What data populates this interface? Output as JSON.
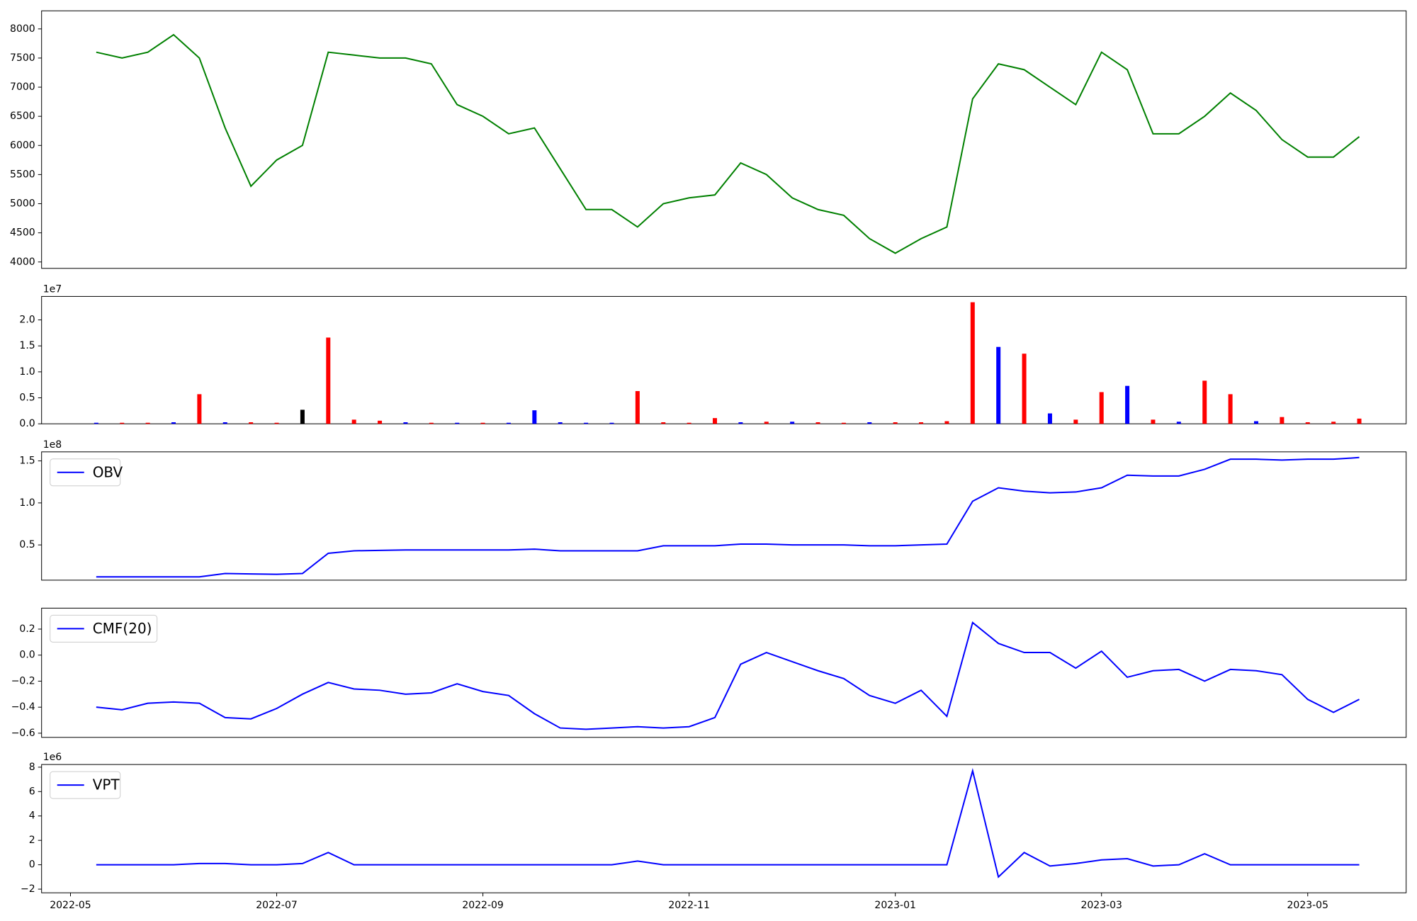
{
  "chart_data": [
    {
      "type": "line",
      "color": "green",
      "values": [
        null,
        null,
        7600,
        7500,
        7600,
        7900,
        7500,
        6300,
        5300,
        5750,
        6000,
        7600,
        7550,
        7500,
        7500,
        7400,
        6700,
        6500,
        6200,
        6300,
        5600,
        4900,
        4900,
        4600,
        5000,
        5100,
        5150,
        5700,
        5500,
        5100,
        4900,
        4800,
        4400,
        4150,
        4400,
        4600,
        6800,
        7400,
        7300,
        7000,
        6700,
        7600,
        7300,
        6200,
        6200,
        6500,
        6900,
        6600,
        6100,
        5800,
        5800,
        6150,
        null
      ],
      "ylim": [
        3890,
        8310
      ],
      "yticks": [
        4000,
        4500,
        5000,
        5500,
        6000,
        6500,
        7000,
        7500,
        8000
      ]
    },
    {
      "type": "bar",
      "offset_label": "1e7",
      "values": [
        null,
        null,
        200000,
        200000,
        200000,
        300000,
        5700000,
        300000,
        300000,
        200000,
        2700000,
        16600000,
        800000,
        600000,
        300000,
        200000,
        200000,
        200000,
        200000,
        2600000,
        300000,
        200000,
        200000,
        6300000,
        300000,
        200000,
        1100000,
        300000,
        400000,
        400000,
        300000,
        200000,
        300000,
        300000,
        300000,
        500000,
        23400000,
        14800000,
        13500000,
        2000000,
        800000,
        6100000,
        7300000,
        800000,
        400000,
        8300000,
        5700000,
        500000,
        1300000,
        300000,
        400000,
        1000000,
        null
      ],
      "colors": [
        null,
        null,
        "blue",
        "red",
        "red",
        "blue",
        "red",
        "blue",
        "red",
        "red",
        "black",
        "red",
        "red",
        "red",
        "blue",
        "red",
        "blue",
        "red",
        "blue",
        "blue",
        "blue",
        "blue",
        "blue",
        "red",
        "red",
        "red",
        "red",
        "blue",
        "red",
        "blue",
        "red",
        "red",
        "blue",
        "red",
        "red",
        "red",
        "red",
        "blue",
        "red",
        "blue",
        "red",
        "red",
        "blue",
        "red",
        "blue",
        "red",
        "red",
        "blue",
        "red",
        "red",
        "red",
        "red",
        null
      ],
      "ylim": [
        0,
        24520000
      ],
      "yticks": [
        {
          "value": 0,
          "label": "0.0"
        },
        {
          "value": 5000000,
          "label": "0.5"
        },
        {
          "value": 10000000,
          "label": "1.0"
        },
        {
          "value": 15000000,
          "label": "1.5"
        },
        {
          "value": 20000000,
          "label": "2.0"
        }
      ]
    },
    {
      "type": "line",
      "offset_label": "1e8",
      "legend": "upper left",
      "series": [
        {
          "name": "OBV",
          "color": "blue",
          "values": [
            null,
            null,
            12000000,
            12000000,
            12000000,
            12000000,
            12000000,
            16000000,
            15500000,
            15000000,
            16000000,
            40000000,
            43000000,
            43500000,
            44000000,
            44000000,
            44000000,
            44000000,
            44000000,
            45000000,
            43000000,
            43000000,
            43000000,
            43000000,
            49000000,
            49000000,
            49000000,
            51000000,
            51000000,
            50000000,
            50000000,
            50000000,
            49000000,
            49000000,
            50000000,
            51000000,
            102000000,
            118000000,
            114000000,
            112000000,
            113000000,
            118000000,
            133000000,
            132000000,
            132000000,
            140000000,
            152000000,
            152000000,
            151000000,
            152000000,
            152000000,
            154000000,
            null
          ]
        }
      ],
      "ylim": [
        8060000,
        160750000
      ],
      "yticks": [
        {
          "value": 50000000,
          "label": "0.5"
        },
        {
          "value": 100000000,
          "label": "1.0"
        },
        {
          "value": 150000000,
          "label": "1.5"
        }
      ]
    },
    {
      "type": "line",
      "legend": "upper left",
      "series": [
        {
          "name": "CMF(20)",
          "color": "blue",
          "values": [
            null,
            null,
            -0.4,
            -0.42,
            -0.37,
            -0.36,
            -0.37,
            -0.48,
            -0.49,
            -0.41,
            -0.3,
            -0.21,
            -0.26,
            -0.27,
            -0.3,
            -0.29,
            -0.22,
            -0.28,
            -0.31,
            -0.45,
            -0.56,
            -0.57,
            -0.56,
            -0.55,
            -0.56,
            -0.55,
            -0.48,
            -0.07,
            0.02,
            -0.05,
            -0.12,
            -0.18,
            -0.31,
            -0.37,
            -0.27,
            -0.47,
            0.25,
            0.09,
            0.02,
            0.02,
            -0.1,
            0.03,
            -0.17,
            -0.12,
            -0.11,
            -0.2,
            -0.11,
            -0.12,
            -0.15,
            -0.34,
            -0.44,
            -0.34,
            null
          ]
        }
      ],
      "ylim": [
        -0.632,
        0.361
      ],
      "yticks": [
        {
          "value": -0.6,
          "label": "−0.6"
        },
        {
          "value": -0.4,
          "label": "−0.4"
        },
        {
          "value": -0.2,
          "label": "−0.2"
        },
        {
          "value": 0,
          "label": "0.0"
        },
        0.2
      ]
    },
    {
      "type": "line",
      "offset_label": "1e6",
      "legend": "upper left",
      "categories": [
        null,
        "2022-05",
        null,
        null,
        null,
        null,
        null,
        null,
        null,
        "2022-07",
        null,
        null,
        null,
        null,
        null,
        null,
        null,
        "2022-09",
        null,
        null,
        null,
        null,
        null,
        null,
        null,
        "2022-11",
        null,
        null,
        null,
        null,
        null,
        null,
        null,
        "2023-01",
        null,
        null,
        null,
        null,
        null,
        null,
        null,
        "2023-03",
        null,
        null,
        null,
        null,
        null,
        null,
        null,
        "2023-05",
        null,
        null,
        null
      ],
      "series": [
        {
          "name": "VPT",
          "color": "blue",
          "values": [
            null,
            null,
            0,
            0,
            0,
            0,
            100000,
            100000,
            0,
            0,
            100000,
            1000000,
            0,
            0,
            0,
            0,
            0,
            0,
            0,
            0,
            0,
            0,
            0,
            300000,
            0,
            0,
            0,
            0,
            0,
            0,
            0,
            0,
            0,
            0,
            0,
            0,
            7700000,
            -1000000,
            1000000,
            -100000,
            100000,
            400000,
            500000,
            -100000,
            0,
            900000,
            0,
            0,
            0,
            0,
            0,
            0,
            null
          ]
        }
      ],
      "ylim": [
        -2300000,
        8220000
      ],
      "yticks": [
        {
          "value": -2000000,
          "label": "−2"
        },
        0,
        {
          "value": 2000000,
          "label": "2"
        },
        {
          "value": 4000000,
          "label": "4"
        },
        {
          "value": 6000000,
          "label": "6"
        },
        {
          "value": 8000000,
          "label": "8"
        }
      ]
    }
  ]
}
